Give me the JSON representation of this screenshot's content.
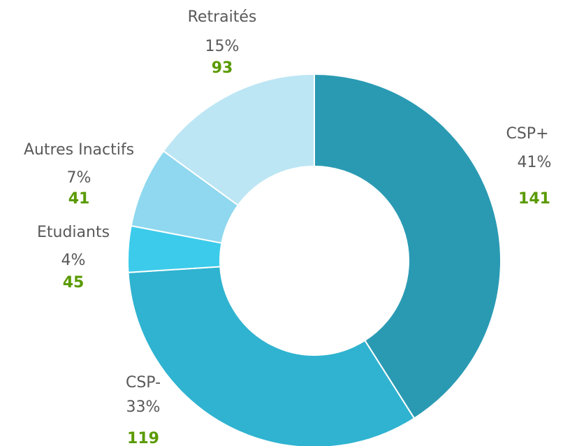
{
  "chart_data": {
    "type": "donut",
    "categories": [
      "CSP+",
      "CSP-",
      "Etudiants",
      "Autres Inactifs",
      "Retraités"
    ],
    "values": [
      41,
      33,
      4,
      7,
      15
    ],
    "value_labels": [
      "41%",
      "33%",
      "4%",
      "7%",
      "15%"
    ],
    "counts": [
      141,
      119,
      45,
      41,
      93
    ],
    "colors": [
      "#2a9ab3",
      "#2fb3d0",
      "#3ccbea",
      "#8fd8ef",
      "#bde6f4"
    ]
  }
}
